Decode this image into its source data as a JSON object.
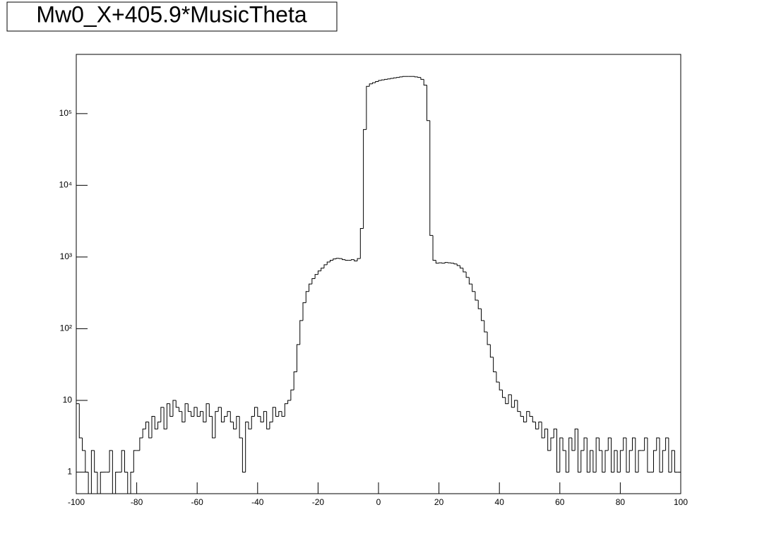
{
  "chart_data": {
    "type": "histogram",
    "title": "Mw0_X+405.9*MusicTheta",
    "bins": [
      -100,
      -99,
      -98,
      -97,
      -96,
      -95,
      -94,
      -93,
      -92,
      -91,
      -90,
      -89,
      -88,
      -87,
      -86,
      -85,
      -84,
      -83,
      -82,
      -81,
      -80,
      -79,
      -78,
      -77,
      -76,
      -75,
      -74,
      -73,
      -72,
      -71,
      -70,
      -69,
      -68,
      -67,
      -66,
      -65,
      -64,
      -63,
      -62,
      -61,
      -60,
      -59,
      -58,
      -57,
      -56,
      -55,
      -54,
      -53,
      -52,
      -51,
      -50,
      -49,
      -48,
      -47,
      -46,
      -45,
      -44,
      -43,
      -42,
      -41,
      -40,
      -39,
      -38,
      -37,
      -36,
      -35,
      -34,
      -33,
      -32,
      -31,
      -30,
      -29,
      -28,
      -27,
      -26,
      -25,
      -24,
      -23,
      -22,
      -21,
      -20,
      -19,
      -18,
      -17,
      -16,
      -15,
      -14,
      -13,
      -12,
      -11,
      -10,
      -9,
      -8,
      -7,
      -6,
      -5,
      -4,
      -3,
      -2,
      -1,
      0,
      1,
      2,
      3,
      4,
      5,
      6,
      7,
      8,
      9,
      10,
      11,
      12,
      13,
      14,
      15,
      16,
      17,
      18,
      19,
      20,
      21,
      22,
      23,
      24,
      25,
      26,
      27,
      28,
      29,
      30,
      31,
      32,
      33,
      34,
      35,
      36,
      37,
      38,
      39,
      40,
      41,
      42,
      43,
      44,
      45,
      46,
      47,
      48,
      49,
      50,
      51,
      52,
      53,
      54,
      55,
      56,
      57,
      58,
      59,
      60,
      61,
      62,
      63,
      64,
      65,
      66,
      67,
      68,
      69,
      70,
      71,
      72,
      73,
      74,
      75,
      76,
      77,
      78,
      79,
      80,
      81,
      82,
      83,
      84,
      85,
      86,
      87,
      88,
      89,
      90,
      91,
      92,
      93,
      94,
      95,
      96,
      97,
      98,
      99,
      100
    ],
    "values": [
      9,
      3,
      2,
      1,
      0,
      2,
      1,
      0,
      1,
      1,
      1,
      2,
      0,
      1,
      1,
      2,
      1,
      0,
      1,
      2,
      2,
      3,
      4,
      5,
      3,
      6,
      4,
      5,
      8,
      4,
      9,
      6,
      10,
      8,
      7,
      5,
      9,
      7,
      6,
      8,
      6,
      7,
      5,
      9,
      6,
      3,
      7,
      8,
      5,
      6,
      7,
      5,
      4,
      6,
      3,
      1,
      5,
      4,
      6,
      8,
      6,
      5,
      7,
      4,
      5,
      8,
      6,
      7,
      6,
      9,
      10,
      14,
      25,
      60,
      130,
      230,
      330,
      420,
      500,
      570,
      640,
      700,
      780,
      850,
      900,
      940,
      960,
      950,
      920,
      900,
      900,
      920,
      880,
      950,
      2500,
      60000,
      240000,
      260000,
      270000,
      280000,
      290000,
      295000,
      300000,
      305000,
      310000,
      315000,
      320000,
      325000,
      330000,
      330000,
      330000,
      330000,
      325000,
      320000,
      300000,
      250000,
      80000,
      2000,
      900,
      820,
      830,
      820,
      840,
      830,
      820,
      800,
      760,
      700,
      620,
      520,
      420,
      330,
      250,
      190,
      130,
      90,
      60,
      40,
      25,
      18,
      14,
      11,
      9,
      12,
      8,
      10,
      7,
      6,
      5,
      7,
      6,
      5,
      4,
      5,
      3,
      4,
      2,
      3,
      4,
      1,
      3,
      2,
      1,
      3,
      2,
      4,
      1,
      2,
      3,
      1,
      2,
      1,
      3,
      2,
      1,
      2,
      3,
      1,
      2,
      1,
      2,
      3,
      1,
      2,
      3,
      1,
      2,
      2,
      3,
      1,
      1,
      2,
      3,
      1,
      2,
      3,
      1,
      2,
      1,
      1
    ],
    "color": "#000000",
    "xlim": [
      -100,
      100
    ],
    "xticks": [
      -100,
      -80,
      -60,
      -40,
      -20,
      0,
      20,
      40,
      60,
      80,
      100
    ],
    "ylim": [
      0.5,
      670000
    ],
    "log_y": true,
    "yticks": [
      1,
      10,
      {
        "value": 100,
        "label": "10²"
      },
      {
        "value": 1000,
        "label": "10³"
      },
      {
        "value": 10000,
        "label": "10⁴"
      },
      {
        "value": 100000,
        "label": "10⁵"
      }
    ]
  }
}
